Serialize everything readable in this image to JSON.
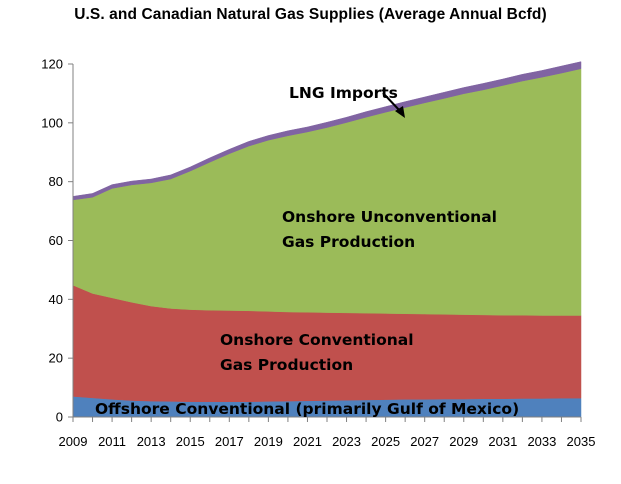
{
  "chart_data": {
    "type": "area",
    "stacked": true,
    "title": "U.S. and Canadian Natural Gas Supplies (Average Annual Bcfd)",
    "xlabel": "",
    "ylabel": "",
    "ylim": [
      0,
      120
    ],
    "y_ticks": [
      0,
      20,
      40,
      60,
      80,
      100,
      120
    ],
    "x_tick_labels": [
      "2009",
      "2011",
      "2013",
      "2015",
      "2017",
      "2019",
      "2021",
      "2023",
      "2025",
      "2027",
      "2029",
      "2031",
      "2033",
      "2035"
    ],
    "x": [
      2009,
      2010,
      2011,
      2012,
      2013,
      2014,
      2015,
      2016,
      2017,
      2018,
      2019,
      2020,
      2021,
      2022,
      2023,
      2024,
      2025,
      2026,
      2027,
      2028,
      2029,
      2030,
      2031,
      2032,
      2033,
      2034,
      2035
    ],
    "series": [
      {
        "name": "Offshore Conventional (primarily Gulf of Mexico)",
        "color": "#4f81bd",
        "values": [
          7.0,
          6.5,
          6.0,
          5.6,
          5.4,
          5.3,
          5.2,
          5.2,
          5.2,
          5.2,
          5.3,
          5.4,
          5.5,
          5.6,
          5.7,
          5.8,
          5.9,
          6.0,
          6.0,
          6.1,
          6.1,
          6.2,
          6.2,
          6.3,
          6.3,
          6.4,
          6.4
        ]
      },
      {
        "name": "Onshore Conventional Gas Production",
        "color": "#c0504d",
        "values": [
          37.8,
          35.5,
          34.5,
          33.4,
          32.3,
          31.6,
          31.3,
          31.1,
          31.0,
          30.9,
          30.6,
          30.3,
          30.1,
          29.9,
          29.7,
          29.5,
          29.3,
          29.1,
          29.0,
          28.8,
          28.7,
          28.5,
          28.4,
          28.3,
          28.2,
          28.1,
          28.1
        ]
      },
      {
        "name": "Onshore Unconventional Gas Production",
        "color": "#9bbb59",
        "values": [
          29.0,
          32.7,
          37.2,
          39.9,
          41.9,
          44.0,
          47.1,
          50.3,
          53.3,
          56.0,
          58.2,
          59.9,
          61.3,
          62.9,
          64.7,
          66.6,
          68.4,
          70.1,
          71.8,
          73.4,
          75.1,
          76.5,
          78.1,
          79.6,
          81.0,
          82.4,
          83.9
        ]
      },
      {
        "name": "LNG Imports",
        "color": "#8064a2",
        "values": [
          1.2,
          1.3,
          1.3,
          1.3,
          1.3,
          1.4,
          1.4,
          1.5,
          1.5,
          1.6,
          1.6,
          1.7,
          1.7,
          1.8,
          1.8,
          1.9,
          1.9,
          2.0,
          2.0,
          2.1,
          2.1,
          2.2,
          2.2,
          2.3,
          2.3,
          2.4,
          2.4
        ]
      }
    ],
    "annotations": {
      "lng": "LNG Imports",
      "unconventional_line1": "Onshore Unconventional",
      "unconventional_line2": "Gas Production",
      "conventional_line1": "Onshore Conventional",
      "conventional_line2": "Gas Production",
      "offshore": "Offshore Conventional (primarily Gulf of Mexico)"
    }
  }
}
